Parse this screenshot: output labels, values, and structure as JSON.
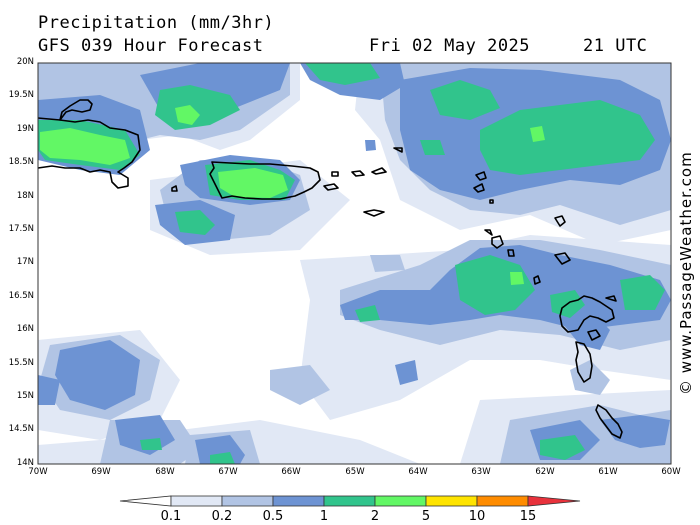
{
  "header": {
    "title": "Precipitation (mm/3hr)",
    "model": "GFS 039 Hour Forecast",
    "date": "Fri 02 May 2025",
    "time": "21 UTC"
  },
  "credit": "© www.PassageWeather.com",
  "map": {
    "lat_labels": [
      "20N",
      "19.5N",
      "19N",
      "18.5N",
      "18N",
      "17.5N",
      "17N",
      "16.5N",
      "16N",
      "15.5N",
      "15N",
      "14.5N",
      "14N"
    ],
    "lon_labels": [
      "70W",
      "69W",
      "68W",
      "67W",
      "66W",
      "65W",
      "64W",
      "63W",
      "62W",
      "61W",
      "60W"
    ],
    "lat_range": [
      14,
      20
    ],
    "lon_range": [
      -70,
      -60
    ],
    "land_outline_color": "#000000"
  },
  "legend": {
    "ticks": [
      "0.1",
      "0.2",
      "0.5",
      "1",
      "2",
      "5",
      "10",
      "15"
    ],
    "colors": [
      "#ffffff",
      "#e1e8f5",
      "#b1c4e4",
      "#6d93d3",
      "#31c48c",
      "#62f765",
      "#ffe400",
      "#ff8c00",
      "#e8323c"
    ]
  }
}
